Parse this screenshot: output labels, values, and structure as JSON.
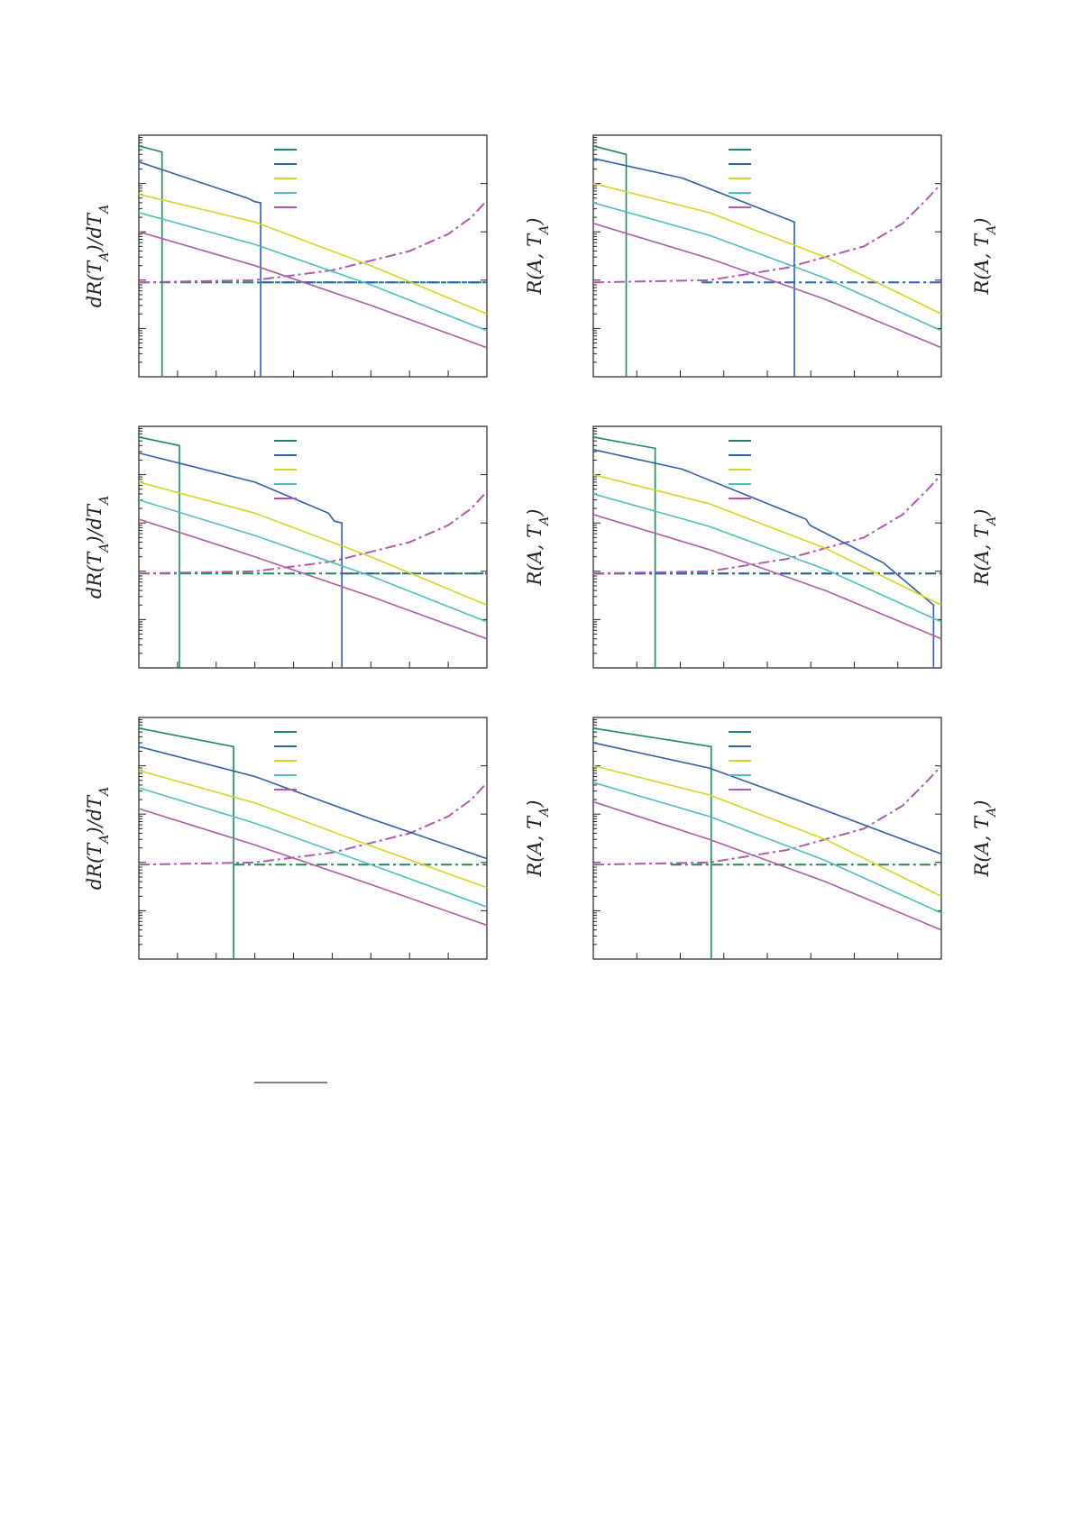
{
  "figure": {
    "left_label": "dR(T_A)/dT_A",
    "right_label": "R(A, T_A)",
    "colors": {
      "green": "#1a8a5a",
      "blue": "#2f5fa8",
      "yellow": "#d8d61c",
      "cyan": "#4cc0c0",
      "magenta": "#b05aae"
    }
  },
  "chart_data": [
    {
      "type": "line",
      "yscale": "log",
      "ylim": [
        0.0001,
        10
      ],
      "xlim": [
        0,
        9
      ],
      "left_ylabel": "dR(T_A)/dT_A",
      "right_ylabel": "R(A, T_A)",
      "series": [
        {
          "color_key": "green",
          "x": [
            0,
            0.6,
            0.6
          ],
          "y": [
            6,
            4.5,
            0.0001
          ]
        },
        {
          "color_key": "blue",
          "x": [
            0,
            2.8,
            3.0,
            3.15,
            3.15
          ],
          "y": [
            2.8,
            0.5,
            0.42,
            0.4,
            0.0001
          ]
        },
        {
          "color_key": "yellow",
          "x": [
            0,
            3,
            6,
            9
          ],
          "y": [
            0.6,
            0.16,
            0.02,
            0.002
          ]
        },
        {
          "color_key": "cyan",
          "x": [
            0,
            3,
            6,
            9
          ],
          "y": [
            0.25,
            0.055,
            0.008,
            0.0009
          ]
        },
        {
          "color_key": "magenta",
          "x": [
            0,
            3,
            6,
            9
          ],
          "y": [
            0.1,
            0.02,
            0.003,
            0.0004
          ]
        }
      ],
      "dashed": [
        {
          "color_key": "green",
          "x": [
            0,
            9
          ],
          "y": [
            0.009,
            0.009
          ],
          "style": "dashdot"
        },
        {
          "color_key": "blue",
          "x": [
            3.15,
            9
          ],
          "y": [
            0.009,
            0.009
          ],
          "style": "dashdot"
        },
        {
          "color_key": "magenta",
          "x": [
            0,
            3,
            5,
            7,
            8,
            8.6,
            9
          ],
          "y": [
            0.009,
            0.01,
            0.016,
            0.04,
            0.09,
            0.2,
            0.45
          ],
          "style": "dashdot"
        }
      ]
    },
    {
      "type": "line",
      "yscale": "log",
      "ylim": [
        0.0001,
        10
      ],
      "xlim": [
        0,
        9
      ],
      "left_ylabel": "",
      "right_ylabel": "R(A, T_A)",
      "series": [
        {
          "color_key": "green",
          "x": [
            0,
            0.85,
            0.85
          ],
          "y": [
            6,
            4,
            0.0001
          ]
        },
        {
          "color_key": "blue",
          "x": [
            0,
            2.3,
            5.2,
            5.2
          ],
          "y": [
            3.3,
            1.3,
            0.16,
            0.0001
          ]
        },
        {
          "color_key": "yellow",
          "x": [
            0,
            3,
            6,
            9
          ],
          "y": [
            1,
            0.25,
            0.03,
            0.002
          ]
        },
        {
          "color_key": "cyan",
          "x": [
            0,
            3,
            6,
            9
          ],
          "y": [
            0.4,
            0.085,
            0.011,
            0.0009
          ]
        },
        {
          "color_key": "magenta",
          "x": [
            0,
            3,
            6,
            9
          ],
          "y": [
            0.15,
            0.028,
            0.004,
            0.0004
          ]
        }
      ],
      "dashed": [
        {
          "color_key": "blue",
          "x": [
            2.8,
            9
          ],
          "y": [
            0.009,
            0.009
          ],
          "style": "dashdot"
        },
        {
          "color_key": "magenta",
          "x": [
            0,
            3,
            5,
            7,
            8,
            8.6,
            9
          ],
          "y": [
            0.009,
            0.01,
            0.018,
            0.05,
            0.15,
            0.45,
            1.0
          ],
          "style": "dashdot"
        }
      ]
    },
    {
      "type": "line",
      "yscale": "log",
      "ylim": [
        0.0001,
        10
      ],
      "xlim": [
        0,
        9
      ],
      "left_ylabel": "dR(T_A)/dT_A",
      "right_ylabel": "R(A, T_A)",
      "series": [
        {
          "color_key": "green",
          "x": [
            0,
            1.05,
            1.05
          ],
          "y": [
            6,
            4,
            0.0001
          ]
        },
        {
          "color_key": "blue",
          "x": [
            0,
            3,
            4.9,
            5.05,
            5.25,
            5.25
          ],
          "y": [
            2.8,
            0.7,
            0.16,
            0.11,
            0.1,
            0.0001
          ]
        },
        {
          "color_key": "yellow",
          "x": [
            0,
            3,
            6,
            9
          ],
          "y": [
            0.7,
            0.16,
            0.02,
            0.002
          ]
        },
        {
          "color_key": "cyan",
          "x": [
            0,
            3,
            6,
            9
          ],
          "y": [
            0.3,
            0.055,
            0.008,
            0.0009
          ]
        },
        {
          "color_key": "magenta",
          "x": [
            0,
            3,
            6,
            9
          ],
          "y": [
            0.12,
            0.02,
            0.003,
            0.0004
          ]
        }
      ],
      "dashed": [
        {
          "color_key": "green",
          "x": [
            0,
            9
          ],
          "y": [
            0.009,
            0.009
          ],
          "style": "dashdot"
        },
        {
          "color_key": "blue",
          "x": [
            5.25,
            9
          ],
          "y": [
            0.009,
            0.009
          ],
          "style": "dashdot"
        },
        {
          "color_key": "magenta",
          "x": [
            0,
            3,
            5,
            7,
            8,
            8.6,
            9
          ],
          "y": [
            0.009,
            0.01,
            0.016,
            0.04,
            0.09,
            0.2,
            0.45
          ],
          "style": "dashdot"
        }
      ]
    },
    {
      "type": "line",
      "yscale": "log",
      "ylim": [
        0.0001,
        10
      ],
      "xlim": [
        0,
        9
      ],
      "left_ylabel": "",
      "right_ylabel": "R(A, T_A)",
      "series": [
        {
          "color_key": "green",
          "x": [
            0,
            1.6,
            1.6
          ],
          "y": [
            6,
            3.5,
            0.0001
          ]
        },
        {
          "color_key": "blue",
          "x": [
            0,
            2.3,
            5.5,
            5.6,
            7.5,
            8.8,
            8.8
          ],
          "y": [
            3.3,
            1.3,
            0.12,
            0.09,
            0.015,
            0.002,
            0.0001
          ]
        },
        {
          "color_key": "yellow",
          "x": [
            0,
            3,
            6,
            9
          ],
          "y": [
            1,
            0.25,
            0.03,
            0.002
          ]
        },
        {
          "color_key": "cyan",
          "x": [
            0,
            3,
            6,
            9
          ],
          "y": [
            0.4,
            0.085,
            0.011,
            0.0009
          ]
        },
        {
          "color_key": "magenta",
          "x": [
            0,
            3,
            6,
            9
          ],
          "y": [
            0.15,
            0.028,
            0.004,
            0.0004
          ]
        }
      ],
      "dashed": [
        {
          "color_key": "green",
          "x": [
            0,
            9
          ],
          "y": [
            0.009,
            0.009
          ],
          "style": "dashdot"
        },
        {
          "color_key": "blue",
          "x": [
            0,
            9
          ],
          "y": [
            0.009,
            0.009
          ],
          "style": "dashdot"
        },
        {
          "color_key": "magenta",
          "x": [
            0,
            3,
            5,
            7,
            8,
            8.6,
            9
          ],
          "y": [
            0.009,
            0.01,
            0.018,
            0.05,
            0.15,
            0.45,
            1.0
          ],
          "style": "dashdot"
        }
      ]
    },
    {
      "type": "line",
      "yscale": "log",
      "ylim": [
        0.0001,
        10
      ],
      "xlim": [
        0,
        9
      ],
      "left_ylabel": "dR(T_A)/dT_A",
      "right_ylabel": "R(A, T_A)",
      "series": [
        {
          "color_key": "green",
          "x": [
            0,
            2.45,
            2.45
          ],
          "y": [
            6,
            2.5,
            0.0001
          ]
        },
        {
          "color_key": "blue",
          "x": [
            0,
            3,
            6,
            9
          ],
          "y": [
            2.5,
            0.6,
            0.08,
            0.012
          ]
        },
        {
          "color_key": "yellow",
          "x": [
            0,
            3,
            6,
            9
          ],
          "y": [
            0.8,
            0.17,
            0.022,
            0.003
          ]
        },
        {
          "color_key": "cyan",
          "x": [
            0,
            3,
            6,
            9
          ],
          "y": [
            0.35,
            0.065,
            0.009,
            0.0012
          ]
        },
        {
          "color_key": "magenta",
          "x": [
            0,
            3,
            6,
            9
          ],
          "y": [
            0.13,
            0.023,
            0.0035,
            0.0005
          ]
        }
      ],
      "dashed": [
        {
          "color_key": "green",
          "x": [
            2.45,
            9
          ],
          "y": [
            0.009,
            0.009
          ],
          "style": "dashdot"
        },
        {
          "color_key": "magenta",
          "x": [
            0,
            3,
            5,
            7,
            8,
            8.6,
            9
          ],
          "y": [
            0.009,
            0.01,
            0.016,
            0.04,
            0.09,
            0.2,
            0.45
          ],
          "style": "dashdot"
        }
      ]
    },
    {
      "type": "line",
      "yscale": "log",
      "ylim": [
        0.0001,
        10
      ],
      "xlim": [
        0,
        9
      ],
      "left_ylabel": "",
      "right_ylabel": "R(A, T_A)",
      "series": [
        {
          "color_key": "green",
          "x": [
            0,
            3.05,
            3.05
          ],
          "y": [
            6,
            2.5,
            0.0001
          ]
        },
        {
          "color_key": "blue",
          "x": [
            0,
            3,
            6,
            9
          ],
          "y": [
            3,
            0.9,
            0.12,
            0.015
          ]
        },
        {
          "color_key": "yellow",
          "x": [
            0,
            3,
            6,
            9
          ],
          "y": [
            1,
            0.25,
            0.03,
            0.002
          ]
        },
        {
          "color_key": "cyan",
          "x": [
            0,
            3,
            6,
            9
          ],
          "y": [
            0.45,
            0.09,
            0.011,
            0.0009
          ]
        },
        {
          "color_key": "magenta",
          "x": [
            0,
            3,
            6,
            9
          ],
          "y": [
            0.18,
            0.03,
            0.004,
            0.0004
          ]
        }
      ],
      "dashed": [
        {
          "color_key": "green",
          "x": [
            2.0,
            9
          ],
          "y": [
            0.009,
            0.009
          ],
          "style": "dashdot"
        },
        {
          "color_key": "magenta",
          "x": [
            0,
            3,
            5,
            7,
            8,
            8.6,
            9
          ],
          "y": [
            0.009,
            0.01,
            0.018,
            0.05,
            0.15,
            0.45,
            1.0
          ],
          "style": "dashdot"
        }
      ]
    }
  ]
}
